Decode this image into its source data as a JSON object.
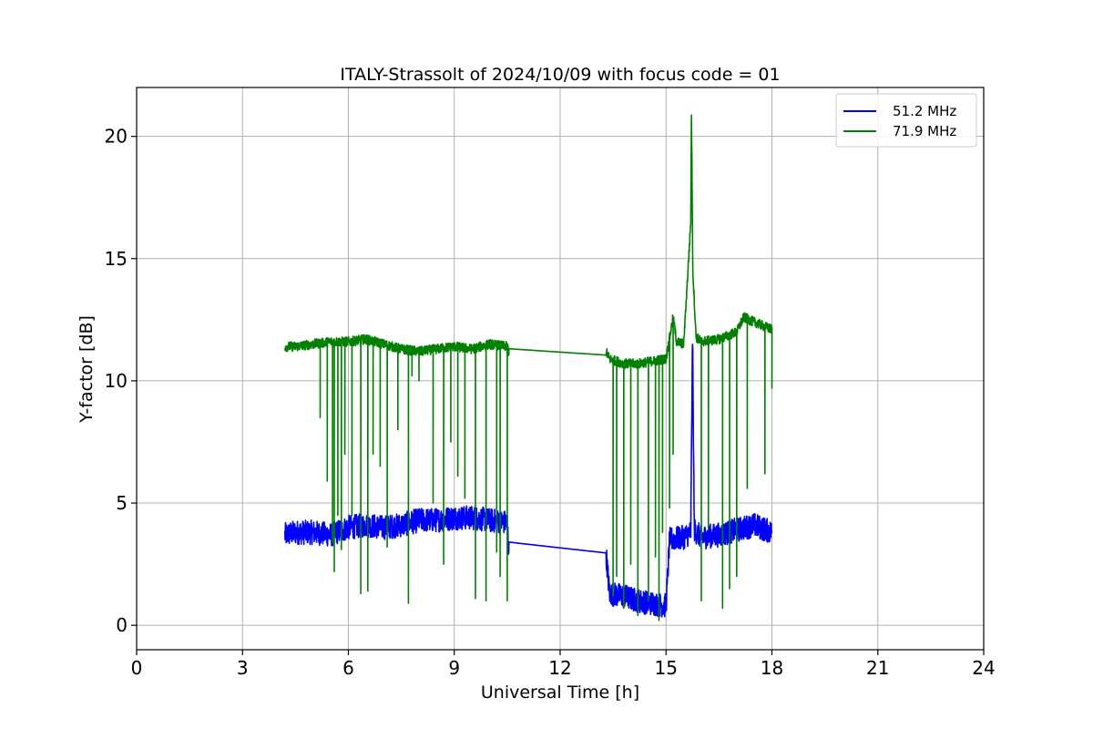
{
  "chart_data": {
    "type": "line",
    "title": "ITALY-Strassolt of 2024/10/09 with focus code = 01",
    "xlabel": "Universal Time [h]",
    "ylabel": "Y-factor [dB]",
    "xlim": [
      0,
      24
    ],
    "ylim": [
      -1,
      22
    ],
    "xticks": [
      0,
      3,
      6,
      9,
      12,
      15,
      18,
      21,
      24
    ],
    "yticks": [
      0,
      5,
      10,
      15,
      20
    ],
    "grid": true,
    "legend_position": "top-right",
    "series": [
      {
        "name": "51.2 MHz",
        "color": "#0000ff",
        "points": [
          [
            4.2,
            3.7
          ],
          [
            4.5,
            3.8
          ],
          [
            5.0,
            3.8
          ],
          [
            5.5,
            3.7
          ],
          [
            6.0,
            4.0
          ],
          [
            6.5,
            4.1
          ],
          [
            7.0,
            4.0
          ],
          [
            7.5,
            4.1
          ],
          [
            8.0,
            4.3
          ],
          [
            8.5,
            4.3
          ],
          [
            9.0,
            4.4
          ],
          [
            9.5,
            4.4
          ],
          [
            10.0,
            4.3
          ],
          [
            10.5,
            4.2
          ],
          [
            10.55,
            3.0
          ],
          [
            13.3,
            2.95
          ],
          [
            13.4,
            1.3
          ],
          [
            13.8,
            1.2
          ],
          [
            14.2,
            1.0
          ],
          [
            14.6,
            0.9
          ],
          [
            15.0,
            0.8
          ],
          [
            15.1,
            3.5
          ],
          [
            15.5,
            3.6
          ],
          [
            15.7,
            3.8
          ],
          [
            15.75,
            11.8
          ],
          [
            15.8,
            3.9
          ],
          [
            16.0,
            3.6
          ],
          [
            16.5,
            3.7
          ],
          [
            17.0,
            3.9
          ],
          [
            17.5,
            4.1
          ],
          [
            18.0,
            3.8
          ]
        ],
        "noise_band_db": 1.0
      },
      {
        "name": "71.9 MHz",
        "color": "#008000",
        "points": [
          [
            4.2,
            11.4
          ],
          [
            4.5,
            11.4
          ],
          [
            5.0,
            11.5
          ],
          [
            5.5,
            11.6
          ],
          [
            6.0,
            11.6
          ],
          [
            6.5,
            11.7
          ],
          [
            7.0,
            11.5
          ],
          [
            7.5,
            11.3
          ],
          [
            8.0,
            11.2
          ],
          [
            8.5,
            11.3
          ],
          [
            9.0,
            11.4
          ],
          [
            9.5,
            11.3
          ],
          [
            10.0,
            11.5
          ],
          [
            10.5,
            11.4
          ],
          [
            10.55,
            11.2
          ],
          [
            13.3,
            11.2
          ],
          [
            13.4,
            10.9
          ],
          [
            13.8,
            10.7
          ],
          [
            14.2,
            10.7
          ],
          [
            14.6,
            10.8
          ],
          [
            15.0,
            10.9
          ],
          [
            15.2,
            12.6
          ],
          [
            15.3,
            11.6
          ],
          [
            15.5,
            11.5
          ],
          [
            15.7,
            16.5
          ],
          [
            15.72,
            21.0
          ],
          [
            15.76,
            14.5
          ],
          [
            15.85,
            11.8
          ],
          [
            16.0,
            11.6
          ],
          [
            16.5,
            11.7
          ],
          [
            17.0,
            12.0
          ],
          [
            17.2,
            12.6
          ],
          [
            17.5,
            12.4
          ],
          [
            18.0,
            12.1
          ]
        ],
        "noise_band_db": 0.4,
        "dropouts": [
          [
            5.2,
            8.5
          ],
          [
            5.4,
            5.9
          ],
          [
            5.55,
            3.4
          ],
          [
            5.6,
            2.2
          ],
          [
            5.7,
            4.5
          ],
          [
            5.8,
            3.1
          ],
          [
            5.9,
            7.0
          ],
          [
            6.1,
            4.5
          ],
          [
            6.35,
            1.3
          ],
          [
            6.55,
            1.4
          ],
          [
            6.7,
            7.0
          ],
          [
            6.9,
            6.5
          ],
          [
            7.1,
            3.2
          ],
          [
            7.4,
            8.0
          ],
          [
            7.7,
            0.9
          ],
          [
            7.8,
            10.2
          ],
          [
            8.0,
            10.0
          ],
          [
            8.4,
            5.0
          ],
          [
            8.7,
            2.5
          ],
          [
            8.9,
            7.5
          ],
          [
            9.1,
            6.1
          ],
          [
            9.3,
            5.2
          ],
          [
            9.6,
            1.1
          ],
          [
            9.9,
            1.0
          ],
          [
            10.2,
            3.0
          ],
          [
            10.3,
            2.0
          ],
          [
            10.5,
            1.0
          ],
          [
            13.5,
            1.2
          ],
          [
            13.6,
            2.0
          ],
          [
            13.8,
            0.7
          ],
          [
            14.0,
            2.5
          ],
          [
            14.2,
            0.4
          ],
          [
            14.5,
            1.0
          ],
          [
            14.7,
            2.8
          ],
          [
            14.8,
            0.2
          ],
          [
            14.9,
            3.8
          ],
          [
            15.1,
            4.8
          ],
          [
            15.2,
            7.0
          ],
          [
            16.0,
            1.0
          ],
          [
            16.2,
            4.0
          ],
          [
            16.6,
            0.7
          ],
          [
            16.8,
            1.5
          ],
          [
            17.0,
            2.0
          ],
          [
            17.3,
            5.6
          ],
          [
            17.8,
            6.2
          ],
          [
            18.0,
            9.7
          ]
        ]
      }
    ]
  }
}
